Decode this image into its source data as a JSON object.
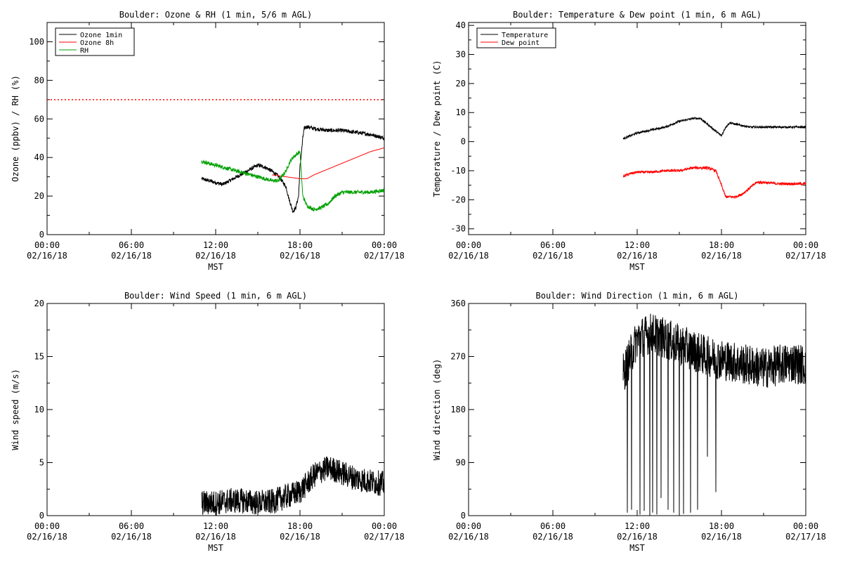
{
  "chart_data": [
    {
      "type": "line",
      "title": "Boulder: Ozone & RH (1 min, 5/6 m AGL)",
      "ylabel": "Ozone (ppbv) / RH (%)",
      "xlabel": "MST",
      "xlim": [
        0,
        24
      ],
      "ylim": [
        0,
        110
      ],
      "yticks": [
        0,
        20,
        40,
        60,
        80,
        100
      ],
      "xticks": [
        {
          "x": 0,
          "line1": "00:00",
          "line2": "02/16/18"
        },
        {
          "x": 6,
          "line1": "06:00",
          "line2": "02/16/18"
        },
        {
          "x": 12,
          "line1": "12:00",
          "line2": "02/16/18"
        },
        {
          "x": 18,
          "line1": "18:00",
          "line2": "02/16/18"
        },
        {
          "x": 24,
          "line1": "00:00",
          "line2": "02/17/18"
        }
      ],
      "legend": {
        "position": "top-left"
      },
      "hline": {
        "y": 70,
        "color": "#ff0000",
        "style": "dotted"
      },
      "series": [
        {
          "name": "Ozone 1min",
          "color": "#000000",
          "noise": 1.0,
          "x": [
            11.0,
            11.5,
            12.0,
            12.5,
            13.0,
            13.5,
            14.0,
            14.5,
            15.0,
            15.5,
            16.0,
            16.5,
            17.0,
            17.2,
            17.5,
            17.7,
            17.9,
            18.0,
            18.1,
            18.2,
            18.3,
            18.5,
            19.0,
            20.0,
            21.0,
            22.0,
            23.0,
            24.0
          ],
          "y": [
            29,
            28,
            27,
            26,
            28,
            30,
            32,
            34,
            36,
            35,
            33,
            30,
            25,
            19,
            12,
            14,
            20,
            35,
            42,
            50,
            55,
            56,
            55,
            54,
            54,
            53,
            52,
            50
          ]
        },
        {
          "name": "Ozone 8h",
          "color": "#ff0000",
          "noise": 0,
          "x": [
            16.0,
            17.0,
            18.0,
            18.5,
            19.0,
            20.0,
            21.0,
            22.0,
            23.0,
            24.0
          ],
          "y": [
            31,
            30,
            29,
            29,
            31,
            34,
            37,
            40,
            43,
            45
          ]
        },
        {
          "name": "RH",
          "color": "#00a000",
          "noise": 1.0,
          "x": [
            11.0,
            11.5,
            12.0,
            12.5,
            13.0,
            13.5,
            14.0,
            14.5,
            15.0,
            15.5,
            16.0,
            16.5,
            17.0,
            17.3,
            17.5,
            17.8,
            18.0,
            18.2,
            18.5,
            19.0,
            19.5,
            20.0,
            20.5,
            21.0,
            22.0,
            23.0,
            24.0
          ],
          "y": [
            38,
            37,
            36,
            35,
            34,
            33,
            32,
            31,
            30,
            29,
            28,
            28,
            33,
            38,
            40,
            42,
            43,
            20,
            15,
            13,
            14,
            16,
            20,
            22,
            22,
            22,
            23
          ]
        }
      ]
    },
    {
      "type": "line",
      "title": "Boulder: Temperature & Dew point (1 min, 6 m AGL)",
      "ylabel": "Temperature / Dew point (C)",
      "xlabel": "MST",
      "xlim": [
        0,
        24
      ],
      "ylim": [
        -32,
        41
      ],
      "yticks": [
        -30,
        -20,
        -10,
        0,
        10,
        20,
        30,
        40
      ],
      "xticks": [
        {
          "x": 0,
          "line1": "00:00",
          "line2": "02/16/18"
        },
        {
          "x": 6,
          "line1": "06:00",
          "line2": "02/16/18"
        },
        {
          "x": 12,
          "line1": "12:00",
          "line2": "02/16/18"
        },
        {
          "x": 18,
          "line1": "18:00",
          "line2": "02/16/18"
        },
        {
          "x": 24,
          "line1": "00:00",
          "line2": "02/17/18"
        }
      ],
      "legend": {
        "position": "top-left"
      },
      "series": [
        {
          "name": "Temperature",
          "color": "#000000",
          "noise": 0.35,
          "x": [
            11.0,
            11.5,
            12.0,
            12.5,
            13.0,
            13.5,
            14.0,
            14.5,
            15.0,
            15.5,
            16.0,
            16.5,
            17.0,
            17.5,
            18.0,
            18.3,
            18.6,
            19.0,
            20.0,
            21.0,
            22.0,
            23.0,
            24.0
          ],
          "y": [
            1,
            2,
            3,
            3.5,
            4,
            4.5,
            5,
            6,
            7,
            7.5,
            8,
            8,
            6,
            4,
            2,
            5,
            6.5,
            6,
            5,
            5,
            5,
            5,
            5
          ]
        },
        {
          "name": "Dew point",
          "color": "#ff0000",
          "noise": 0.45,
          "x": [
            11.0,
            11.5,
            12.0,
            13.0,
            14.0,
            15.0,
            16.0,
            16.5,
            17.0,
            17.3,
            17.6,
            18.0,
            18.3,
            18.6,
            19.0,
            19.5,
            20.0,
            20.5,
            21.0,
            22.0,
            23.0,
            24.0
          ],
          "y": [
            -12,
            -11,
            -10.5,
            -10.5,
            -10,
            -10,
            -9,
            -9,
            -9,
            -9.5,
            -10,
            -15,
            -19,
            -19,
            -19,
            -18,
            -16,
            -14,
            -14,
            -14.5,
            -14.5,
            -14.5
          ]
        }
      ]
    },
    {
      "type": "line",
      "title": "Boulder: Wind Speed (1 min, 6 m AGL)",
      "ylabel": "Wind speed (m/s)",
      "xlabel": "MST",
      "xlim": [
        0,
        24
      ],
      "ylim": [
        0,
        20
      ],
      "yticks": [
        0,
        5,
        10,
        15,
        20
      ],
      "xticks": [
        {
          "x": 0,
          "line1": "00:00",
          "line2": "02/16/18"
        },
        {
          "x": 6,
          "line1": "06:00",
          "line2": "02/16/18"
        },
        {
          "x": 12,
          "line1": "12:00",
          "line2": "02/16/18"
        },
        {
          "x": 18,
          "line1": "18:00",
          "line2": "02/16/18"
        },
        {
          "x": 24,
          "line1": "00:00",
          "line2": "02/17/18"
        }
      ],
      "series": [
        {
          "color": "#000000",
          "noise": 1.2,
          "x": [
            11.0,
            12.0,
            13.0,
            14.0,
            15.0,
            16.0,
            17.0,
            17.5,
            18.0,
            18.5,
            19.0,
            19.5,
            20.0,
            20.5,
            21.0,
            22.0,
            23.0,
            24.0
          ],
          "y": [
            1.2,
            1.2,
            1.4,
            1.4,
            1.2,
            1.3,
            1.8,
            2.0,
            2.3,
            3.0,
            3.8,
            4.2,
            4.5,
            4.3,
            4.0,
            3.5,
            3.2,
            3.0
          ]
        }
      ]
    },
    {
      "type": "line",
      "title": "Boulder: Wind Direction (1 min, 6 m AGL)",
      "ylabel": "Wind direction (deg)",
      "xlabel": "MST",
      "xlim": [
        0,
        24
      ],
      "ylim": [
        0,
        360
      ],
      "yticks": [
        0,
        90,
        180,
        270,
        360
      ],
      "xticks": [
        {
          "x": 0,
          "line1": "00:00",
          "line2": "02/16/18"
        },
        {
          "x": 6,
          "line1": "06:00",
          "line2": "02/16/18"
        },
        {
          "x": 12,
          "line1": "12:00",
          "line2": "02/16/18"
        },
        {
          "x": 18,
          "line1": "18:00",
          "line2": "02/16/18"
        },
        {
          "x": 24,
          "line1": "00:00",
          "line2": "02/17/18"
        }
      ],
      "series": [
        {
          "color": "#000000",
          "noise": 35,
          "x": [
            11.0,
            12.0,
            13.0,
            14.0,
            15.0,
            16.0,
            17.0,
            18.0,
            19.0,
            20.0,
            21.0,
            22.0,
            23.0,
            24.0
          ],
          "y": [
            240,
            300,
            310,
            300,
            290,
            280,
            270,
            265,
            260,
            255,
            250,
            255,
            260,
            255
          ],
          "spikes": [
            {
              "x": 11.3,
              "y": 5
            },
            {
              "x": 11.6,
              "y": 10
            },
            {
              "x": 12.2,
              "y": 2
            },
            {
              "x": 12.5,
              "y": 8
            },
            {
              "x": 12.9,
              "y": 0
            },
            {
              "x": 13.1,
              "y": 5
            },
            {
              "x": 13.4,
              "y": 2
            },
            {
              "x": 13.7,
              "y": 30
            },
            {
              "x": 14.2,
              "y": 10
            },
            {
              "x": 14.6,
              "y": 5
            },
            {
              "x": 15.0,
              "y": 0
            },
            {
              "x": 15.3,
              "y": 3
            },
            {
              "x": 15.8,
              "y": 5
            },
            {
              "x": 16.3,
              "y": 10
            },
            {
              "x": 17.0,
              "y": 100
            },
            {
              "x": 17.6,
              "y": 40
            }
          ]
        }
      ]
    }
  ]
}
